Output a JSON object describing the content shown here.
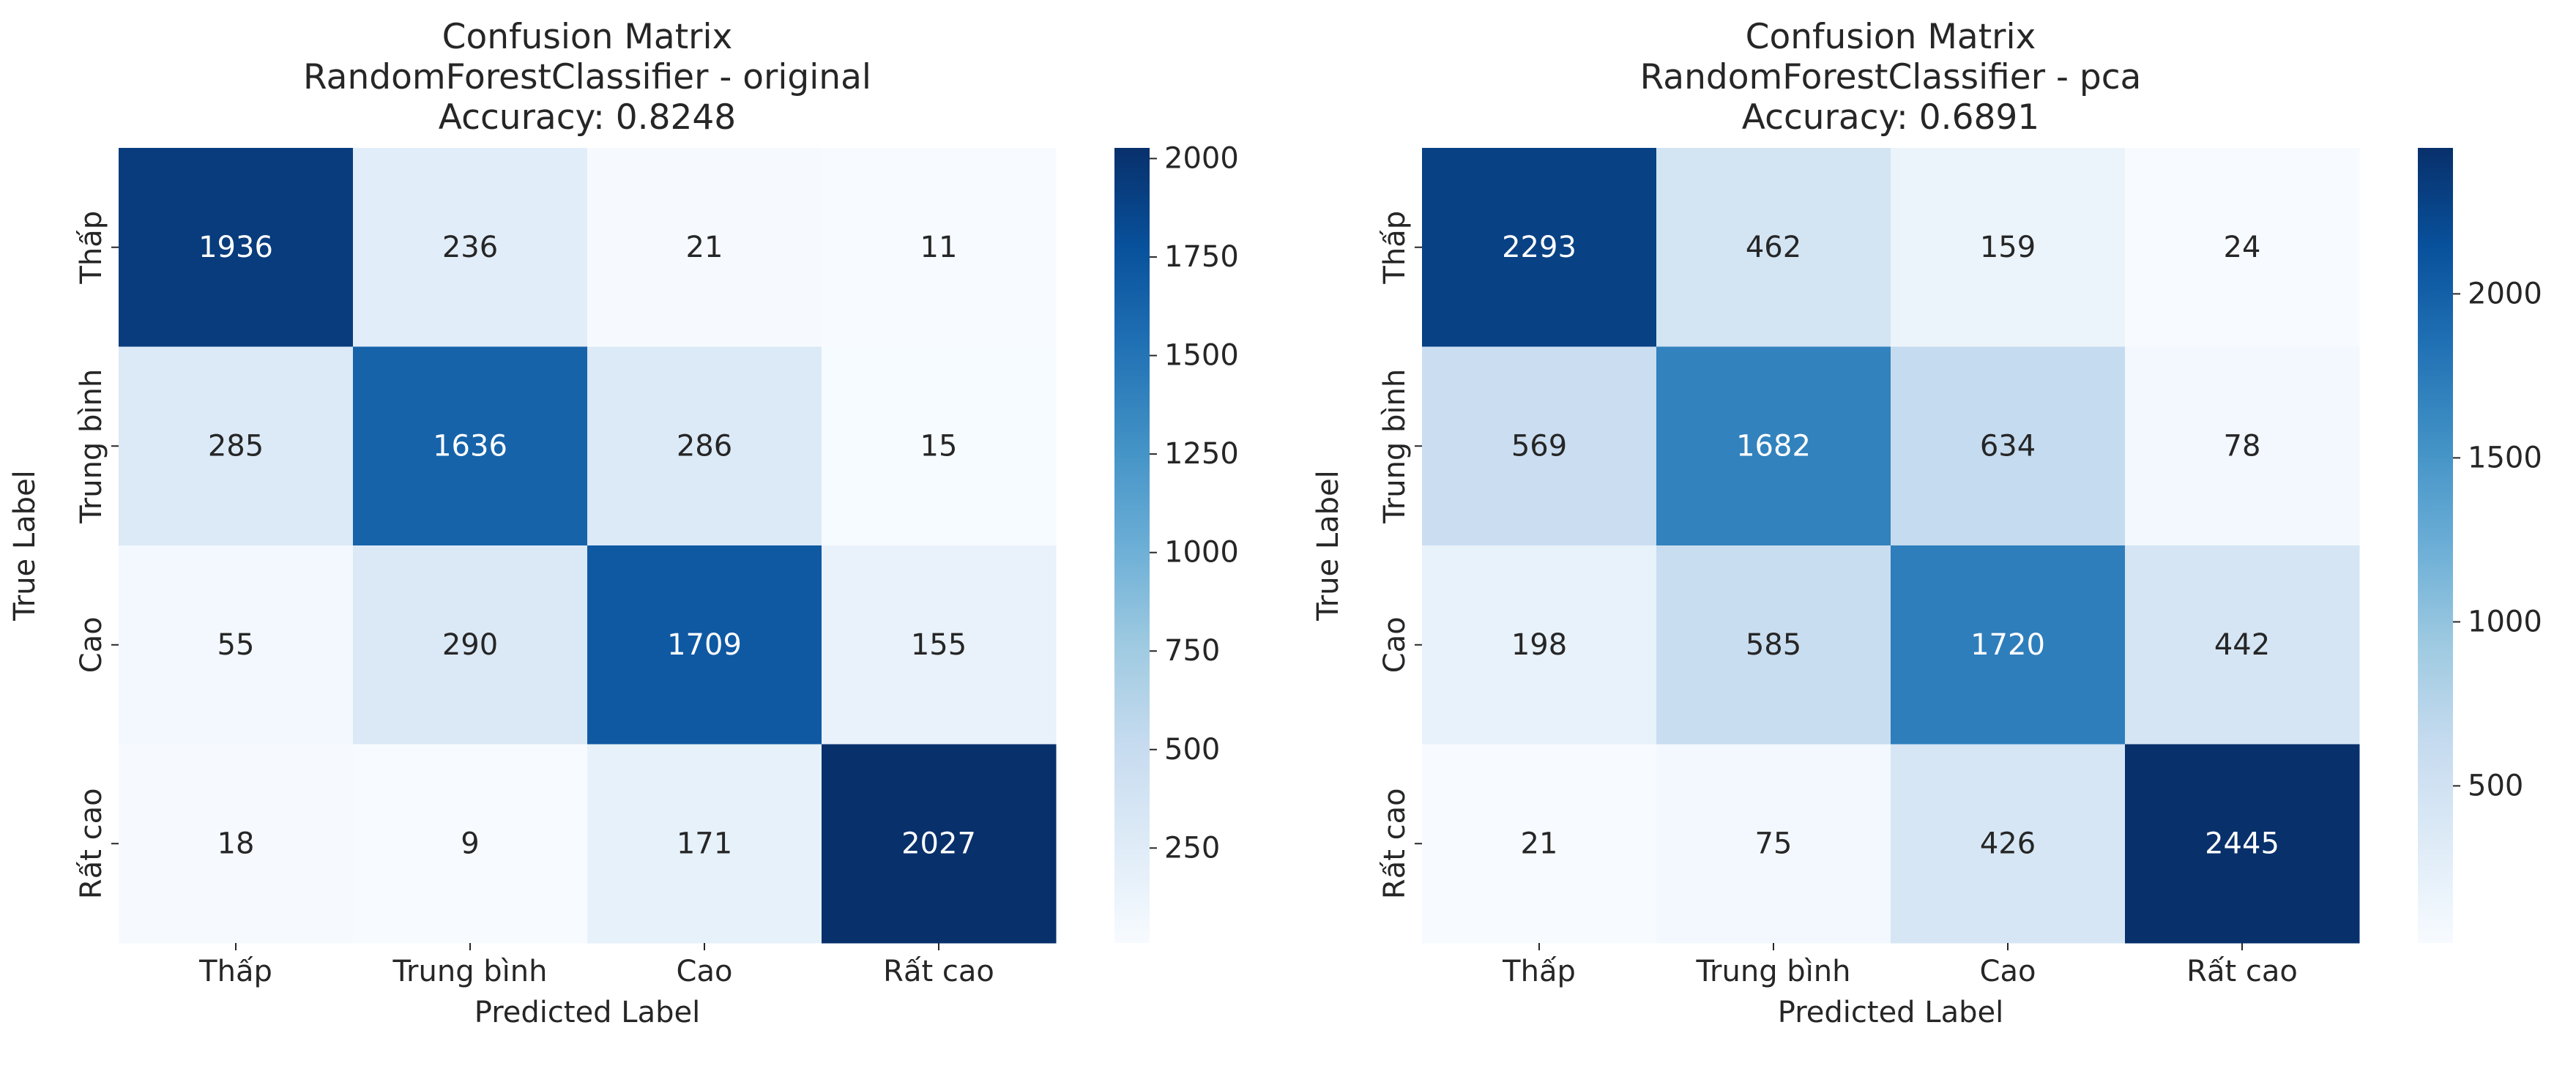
{
  "chart_data": [
    {
      "type": "heatmap",
      "title": [
        "Confusion Matrix",
        "RandomForestClassifier - original",
        "Accuracy: 0.8248"
      ],
      "xlabel": "Predicted Label",
      "ylabel": "True Label",
      "x_categories": [
        "Thấp",
        "Trung bình",
        "Cao",
        "Rất cao"
      ],
      "y_categories": [
        "Thấp",
        "Trung bình",
        "Cao",
        "Rất cao"
      ],
      "matrix": [
        [
          1936,
          236,
          21,
          11
        ],
        [
          285,
          1636,
          286,
          15
        ],
        [
          55,
          290,
          1709,
          155
        ],
        [
          18,
          9,
          171,
          2027
        ]
      ],
      "colorbar": {
        "colormap": "Blues",
        "min": 9,
        "max": 2027,
        "ticks": [
          250,
          500,
          750,
          1000,
          1250,
          1500,
          1750,
          2000
        ]
      }
    },
    {
      "type": "heatmap",
      "title": [
        "Confusion Matrix",
        "RandomForestClassifier - pca",
        "Accuracy: 0.6891"
      ],
      "xlabel": "Predicted Label",
      "ylabel": "True Label",
      "x_categories": [
        "Thấp",
        "Trung bình",
        "Cao",
        "Rất cao"
      ],
      "y_categories": [
        "Thấp",
        "Trung bình",
        "Cao",
        "Rất cao"
      ],
      "matrix": [
        [
          2293,
          462,
          159,
          24
        ],
        [
          569,
          1682,
          634,
          78
        ],
        [
          198,
          585,
          1720,
          442
        ],
        [
          21,
          75,
          426,
          2445
        ]
      ],
      "colorbar": {
        "colormap": "Blues",
        "min": 21,
        "max": 2445,
        "ticks": [
          500,
          1000,
          1500,
          2000
        ]
      }
    }
  ]
}
